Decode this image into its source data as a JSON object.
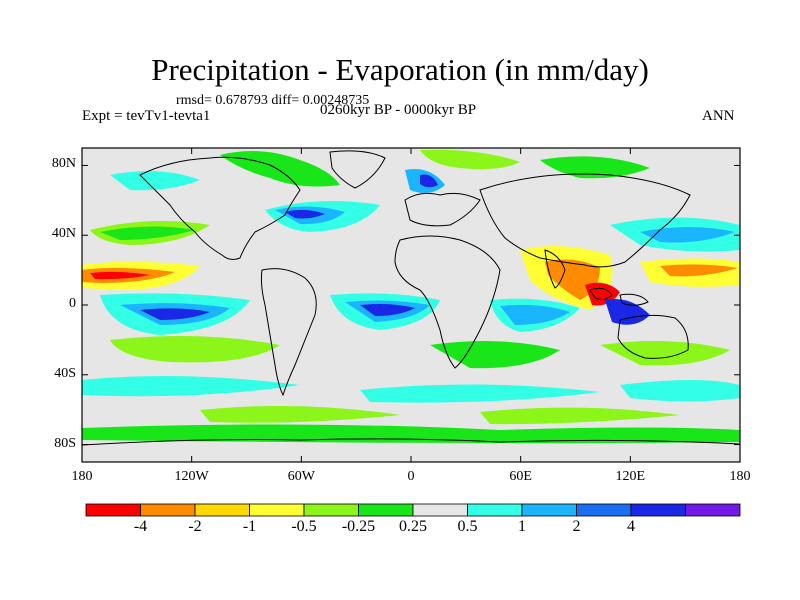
{
  "title": "Precipitation - Evaporation (in mm/day)",
  "stats": "rmsd= 0.678793 diff= 0.00248735",
  "experiment": "Expt = tevTv1-tevta1",
  "period": "0260kyr BP - 0000kyr BP",
  "season": "ANN",
  "lat_ticks": [
    {
      "label": "80N",
      "value": 80
    },
    {
      "label": "40N",
      "value": 40
    },
    {
      "label": "0",
      "value": 0
    },
    {
      "label": "40S",
      "value": -40
    },
    {
      "label": "80S",
      "value": -80
    }
  ],
  "lon_ticks": [
    {
      "label": "180",
      "value": -180
    },
    {
      "label": "120W",
      "value": -120
    },
    {
      "label": "60W",
      "value": -60
    },
    {
      "label": "0",
      "value": 0
    },
    {
      "label": "60E",
      "value": 60
    },
    {
      "label": "120E",
      "value": 120
    },
    {
      "label": "180",
      "value": 180
    }
  ],
  "colorbar": {
    "colors": [
      "#ff0000",
      "#ff8c00",
      "#ffd800",
      "#ffff33",
      "#8cf519",
      "#19e619",
      "#e6e6e6",
      "#33ffe6",
      "#1ab4ff",
      "#1a6ef0",
      "#1a28e6",
      "#7319e6"
    ],
    "labels": [
      "-4",
      "-2",
      "-1",
      "-0.5",
      "-0.25",
      "0.25",
      "0.5",
      "1",
      "2",
      "4"
    ]
  },
  "map_colors": {
    "background": "#e6e6e6",
    "coast": "#000000"
  }
}
